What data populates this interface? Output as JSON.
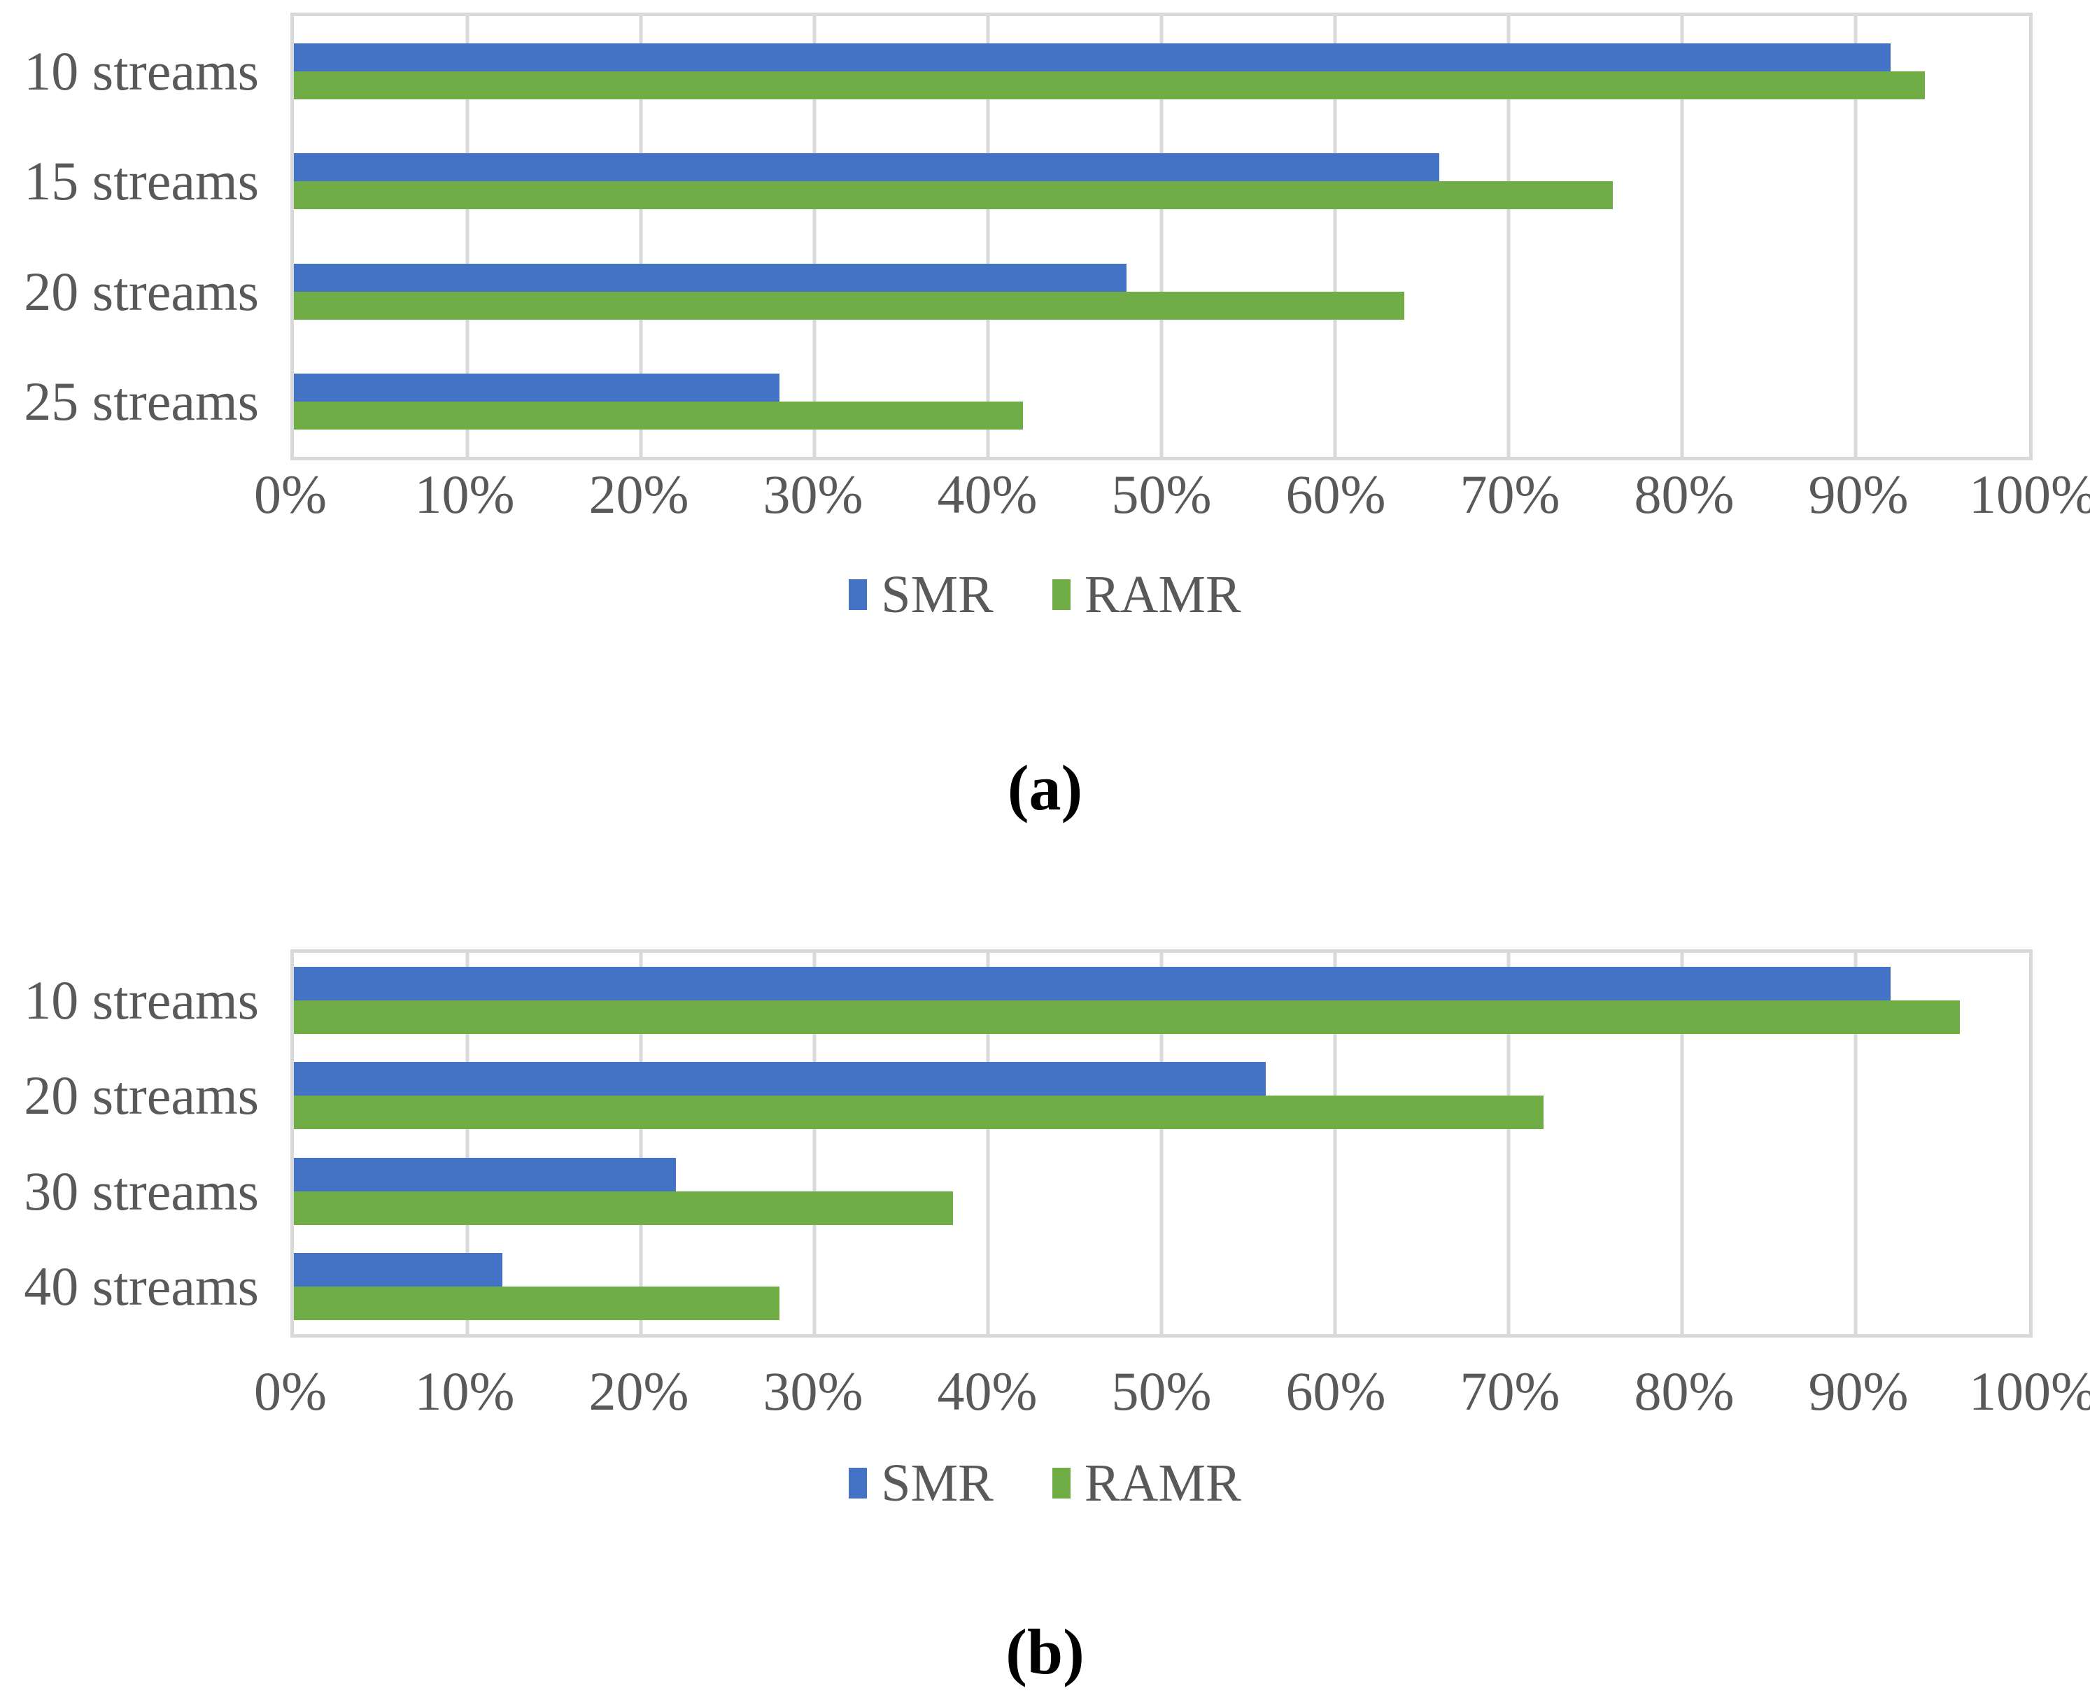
{
  "styles": {
    "text_color": "#595959",
    "grid_color": "#D9D9D9",
    "background": "#ffffff",
    "caption_color": "#000000",
    "smr_color": "#4472C4",
    "ramr_color": "#70AD47"
  },
  "chart_data": [
    {
      "type": "bar",
      "orientation": "horizontal",
      "caption": "(a)",
      "title": "",
      "xlabel": "",
      "ylabel": "",
      "categories": [
        "10 streams",
        "15 streams",
        "20 streams",
        "25 streams"
      ],
      "series": [
        {
          "name": "SMR",
          "color": "#4472C4",
          "values": [
            92,
            66,
            48,
            28
          ]
        },
        {
          "name": "RAMR",
          "color": "#70AD47",
          "values": [
            94,
            76,
            64,
            42
          ]
        }
      ],
      "x_ticks": [
        "0%",
        "10%",
        "20%",
        "30%",
        "40%",
        "50%",
        "60%",
        "70%",
        "80%",
        "90%",
        "100%"
      ],
      "xlim": [
        0,
        100
      ],
      "grid": true,
      "legend_position": "bottom"
    },
    {
      "type": "bar",
      "orientation": "horizontal",
      "caption": "(b)",
      "title": "",
      "xlabel": "",
      "ylabel": "",
      "categories": [
        "10 streams",
        "20 streams",
        "30 streams",
        "40 streams"
      ],
      "series": [
        {
          "name": "SMR",
          "color": "#4472C4",
          "values": [
            92,
            56,
            22,
            12
          ]
        },
        {
          "name": "RAMR",
          "color": "#70AD47",
          "values": [
            96,
            72,
            38,
            28
          ]
        }
      ],
      "x_ticks": [
        "0%",
        "10%",
        "20%",
        "30%",
        "40%",
        "50%",
        "60%",
        "70%",
        "80%",
        "90%",
        "100%"
      ],
      "xlim": [
        0,
        100
      ],
      "grid": true,
      "legend_position": "bottom"
    }
  ]
}
